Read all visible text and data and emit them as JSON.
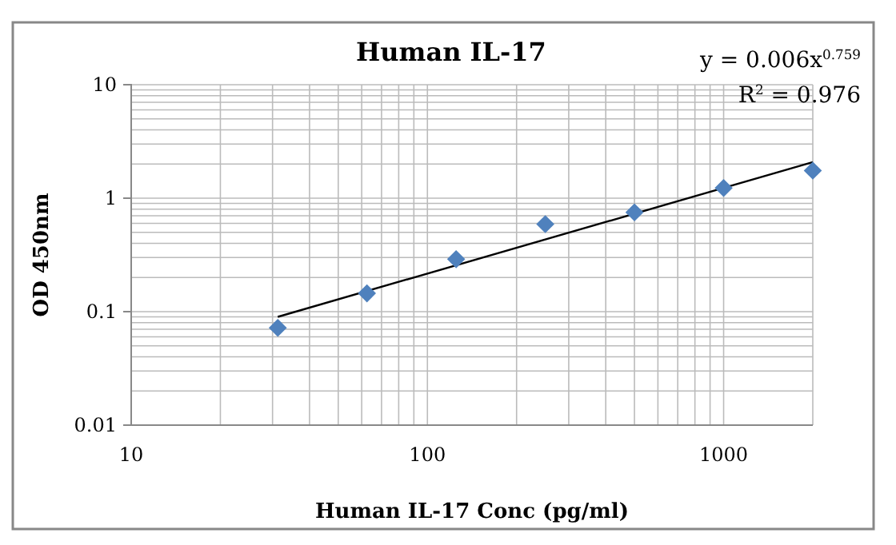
{
  "chart_data": {
    "type": "scatter",
    "title": "Human IL-17",
    "xlabel": "Human IL-17 Conc (pg/ml)",
    "ylabel": "OD 450nm",
    "log": "xy",
    "grid": true,
    "xlim": [
      10,
      2000
    ],
    "ylim": [
      0.01,
      10
    ],
    "xticks": [
      10,
      {
        "value": 20,
        "label": null
      },
      {
        "value": 30,
        "label": null
      },
      {
        "value": 40,
        "label": null
      },
      {
        "value": 50,
        "label": null
      },
      {
        "value": 60,
        "label": null
      },
      {
        "value": 70,
        "label": null
      },
      {
        "value": 80,
        "label": null
      },
      {
        "value": 90,
        "label": null
      },
      100,
      {
        "value": 200,
        "label": null
      },
      {
        "value": 300,
        "label": null
      },
      {
        "value": 400,
        "label": null
      },
      {
        "value": 500,
        "label": null
      },
      {
        "value": 600,
        "label": null
      },
      {
        "value": 700,
        "label": null
      },
      {
        "value": 800,
        "label": null
      },
      {
        "value": 900,
        "label": null
      },
      1000,
      {
        "value": 2000,
        "label": null
      }
    ],
    "yticks": [
      0.01,
      {
        "value": 0.02,
        "label": null
      },
      {
        "value": 0.03,
        "label": null
      },
      {
        "value": 0.04,
        "label": null
      },
      {
        "value": 0.05,
        "label": null
      },
      {
        "value": 0.06,
        "label": null
      },
      {
        "value": 0.07,
        "label": null
      },
      {
        "value": 0.08,
        "label": null
      },
      {
        "value": 0.09,
        "label": null
      },
      0.1,
      {
        "value": 0.2,
        "label": null
      },
      {
        "value": 0.3,
        "label": null
      },
      {
        "value": 0.4,
        "label": null
      },
      {
        "value": 0.5,
        "label": null
      },
      {
        "value": 0.6,
        "label": null
      },
      {
        "value": 0.7,
        "label": null
      },
      {
        "value": 0.8,
        "label": null
      },
      {
        "value": 0.9,
        "label": null
      },
      1,
      {
        "value": 2,
        "label": null
      },
      {
        "value": 3,
        "label": null
      },
      {
        "value": 4,
        "label": null
      },
      {
        "value": 5,
        "label": null
      },
      {
        "value": 6,
        "label": null
      },
      {
        "value": 7,
        "label": null
      },
      {
        "value": 8,
        "label": null
      },
      {
        "value": 9,
        "label": null
      },
      10
    ],
    "series": [
      {
        "color": "#4f81bd",
        "marker": "diamond",
        "x": [
          31.25,
          62.5,
          125,
          250,
          500,
          1000,
          2000
        ],
        "values": [
          0.072,
          0.145,
          0.29,
          0.59,
          0.75,
          1.23,
          1.75
        ]
      },
      {
        "type": "line",
        "marker": "none",
        "color": "#000000",
        "x": [
          31.25,
          2000
        ],
        "values": [
          0.09,
          2.08
        ]
      }
    ],
    "annotations": [
      "y = 0.006x$^{0.759}$",
      "R$^{2}$ = 0.976"
    ]
  }
}
